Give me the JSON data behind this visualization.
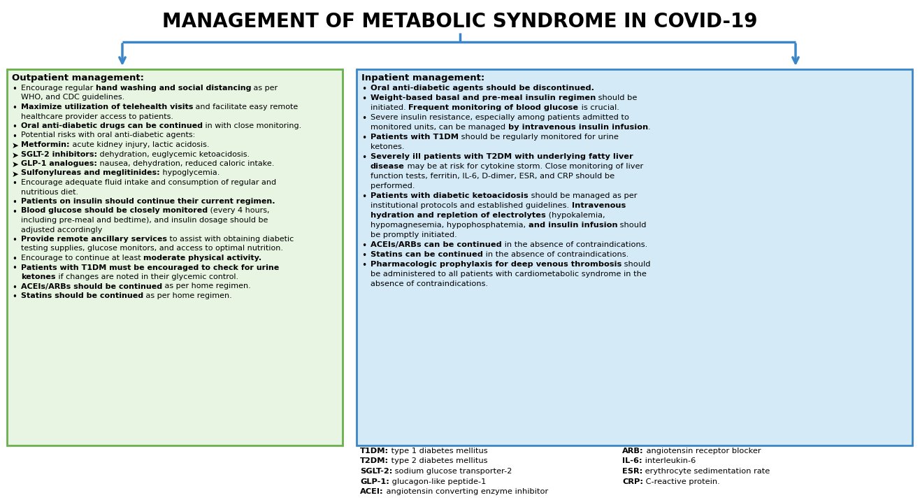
{
  "title": "MANAGEMENT OF METABOLIC SYNDROME IN COVID-19",
  "background_color": "#ffffff",
  "arrow_color": "#3a86c8",
  "left_box_bg": "#e8f5e2",
  "left_box_border": "#6ab04c",
  "right_box_bg": "#d4eaf7",
  "right_box_border": "#3a86c8",
  "text_color": "#000000",
  "left_title": "Outpatient management:",
  "right_title": "Inpatient management:",
  "abbrev_left": [
    "T1DM: type 1 diabetes mellitus",
    "T2DM: type 2 diabetes mellitus",
    "SGLT-2: sodium glucose transporter-2",
    "GLP-1: glucagon-like peptide-1",
    "ACEI: angiotensin converting enzyme inhibitor"
  ],
  "abbrev_right": [
    "ARB: angiotensin receptor blocker",
    "IL-6: interleukin-6",
    "ESR: erythrocyte sedimentation rate",
    "CRP: C-reactive protein."
  ]
}
